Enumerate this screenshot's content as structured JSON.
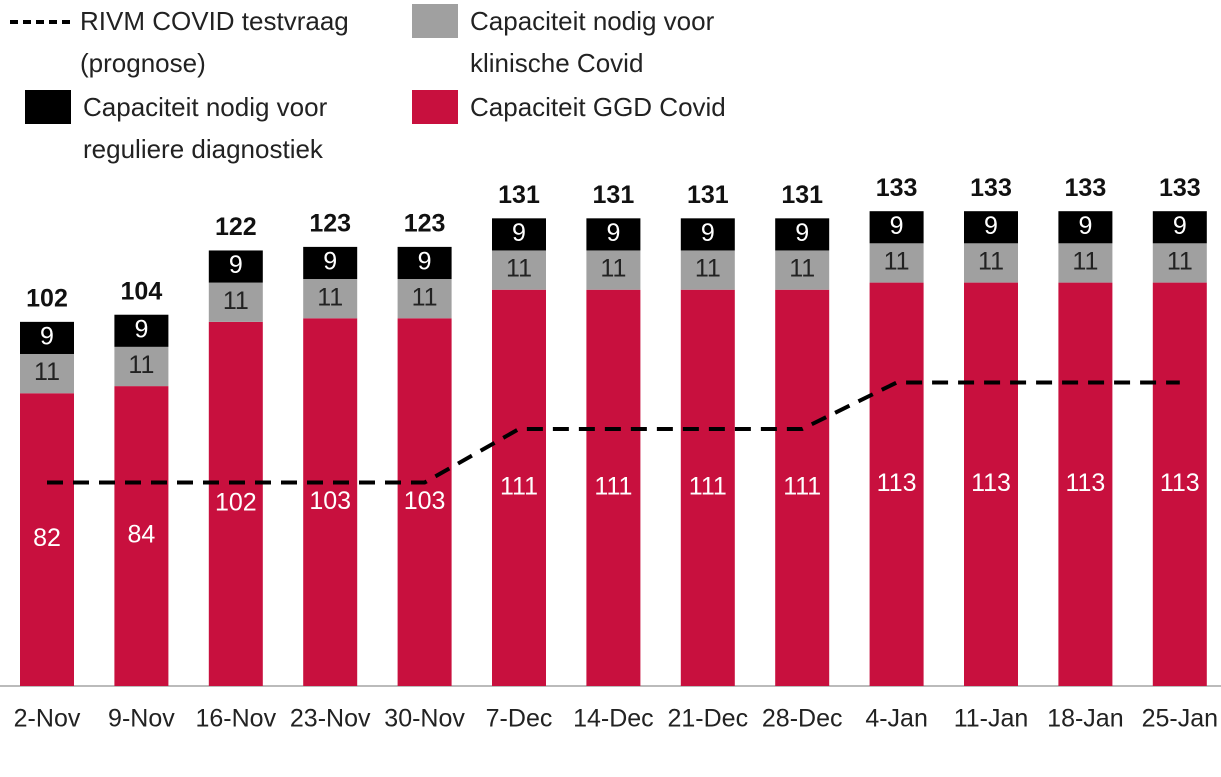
{
  "chart_data": {
    "type": "bar",
    "stacked": true,
    "categories": [
      "2-Nov",
      "9-Nov",
      "16-Nov",
      "23-Nov",
      "30-Nov",
      "7-Dec",
      "14-Dec",
      "21-Dec",
      "28-Dec",
      "4-Jan",
      "11-Jan",
      "18-Jan",
      "25-Jan"
    ],
    "series": [
      {
        "name": "Capaciteit GGD Covid",
        "color": "#c8103e",
        "values": [
          82,
          84,
          102,
          103,
          103,
          111,
          111,
          111,
          111,
          113,
          113,
          113,
          113
        ]
      },
      {
        "name": "Capaciteit nodig voor klinische Covid",
        "color": "#a0a0a0",
        "values": [
          11,
          11,
          11,
          11,
          11,
          11,
          11,
          11,
          11,
          11,
          11,
          11,
          11
        ]
      },
      {
        "name": "Capaciteit nodig voor reguliere diagnostiek",
        "color": "#000000",
        "values": [
          9,
          9,
          9,
          9,
          9,
          9,
          9,
          9,
          9,
          9,
          9,
          9,
          9
        ]
      },
      {
        "name": "RIVM COVID testvraag (prognose)",
        "type": "line",
        "dashed": true,
        "color": "#000000",
        "values": [
          57,
          57,
          57,
          57,
          57,
          72,
          72,
          72,
          72,
          85,
          85,
          85,
          85
        ]
      }
    ],
    "totals": [
      102,
      104,
      122,
      123,
      123,
      131,
      131,
      131,
      131,
      133,
      133,
      133,
      133
    ]
  }
}
